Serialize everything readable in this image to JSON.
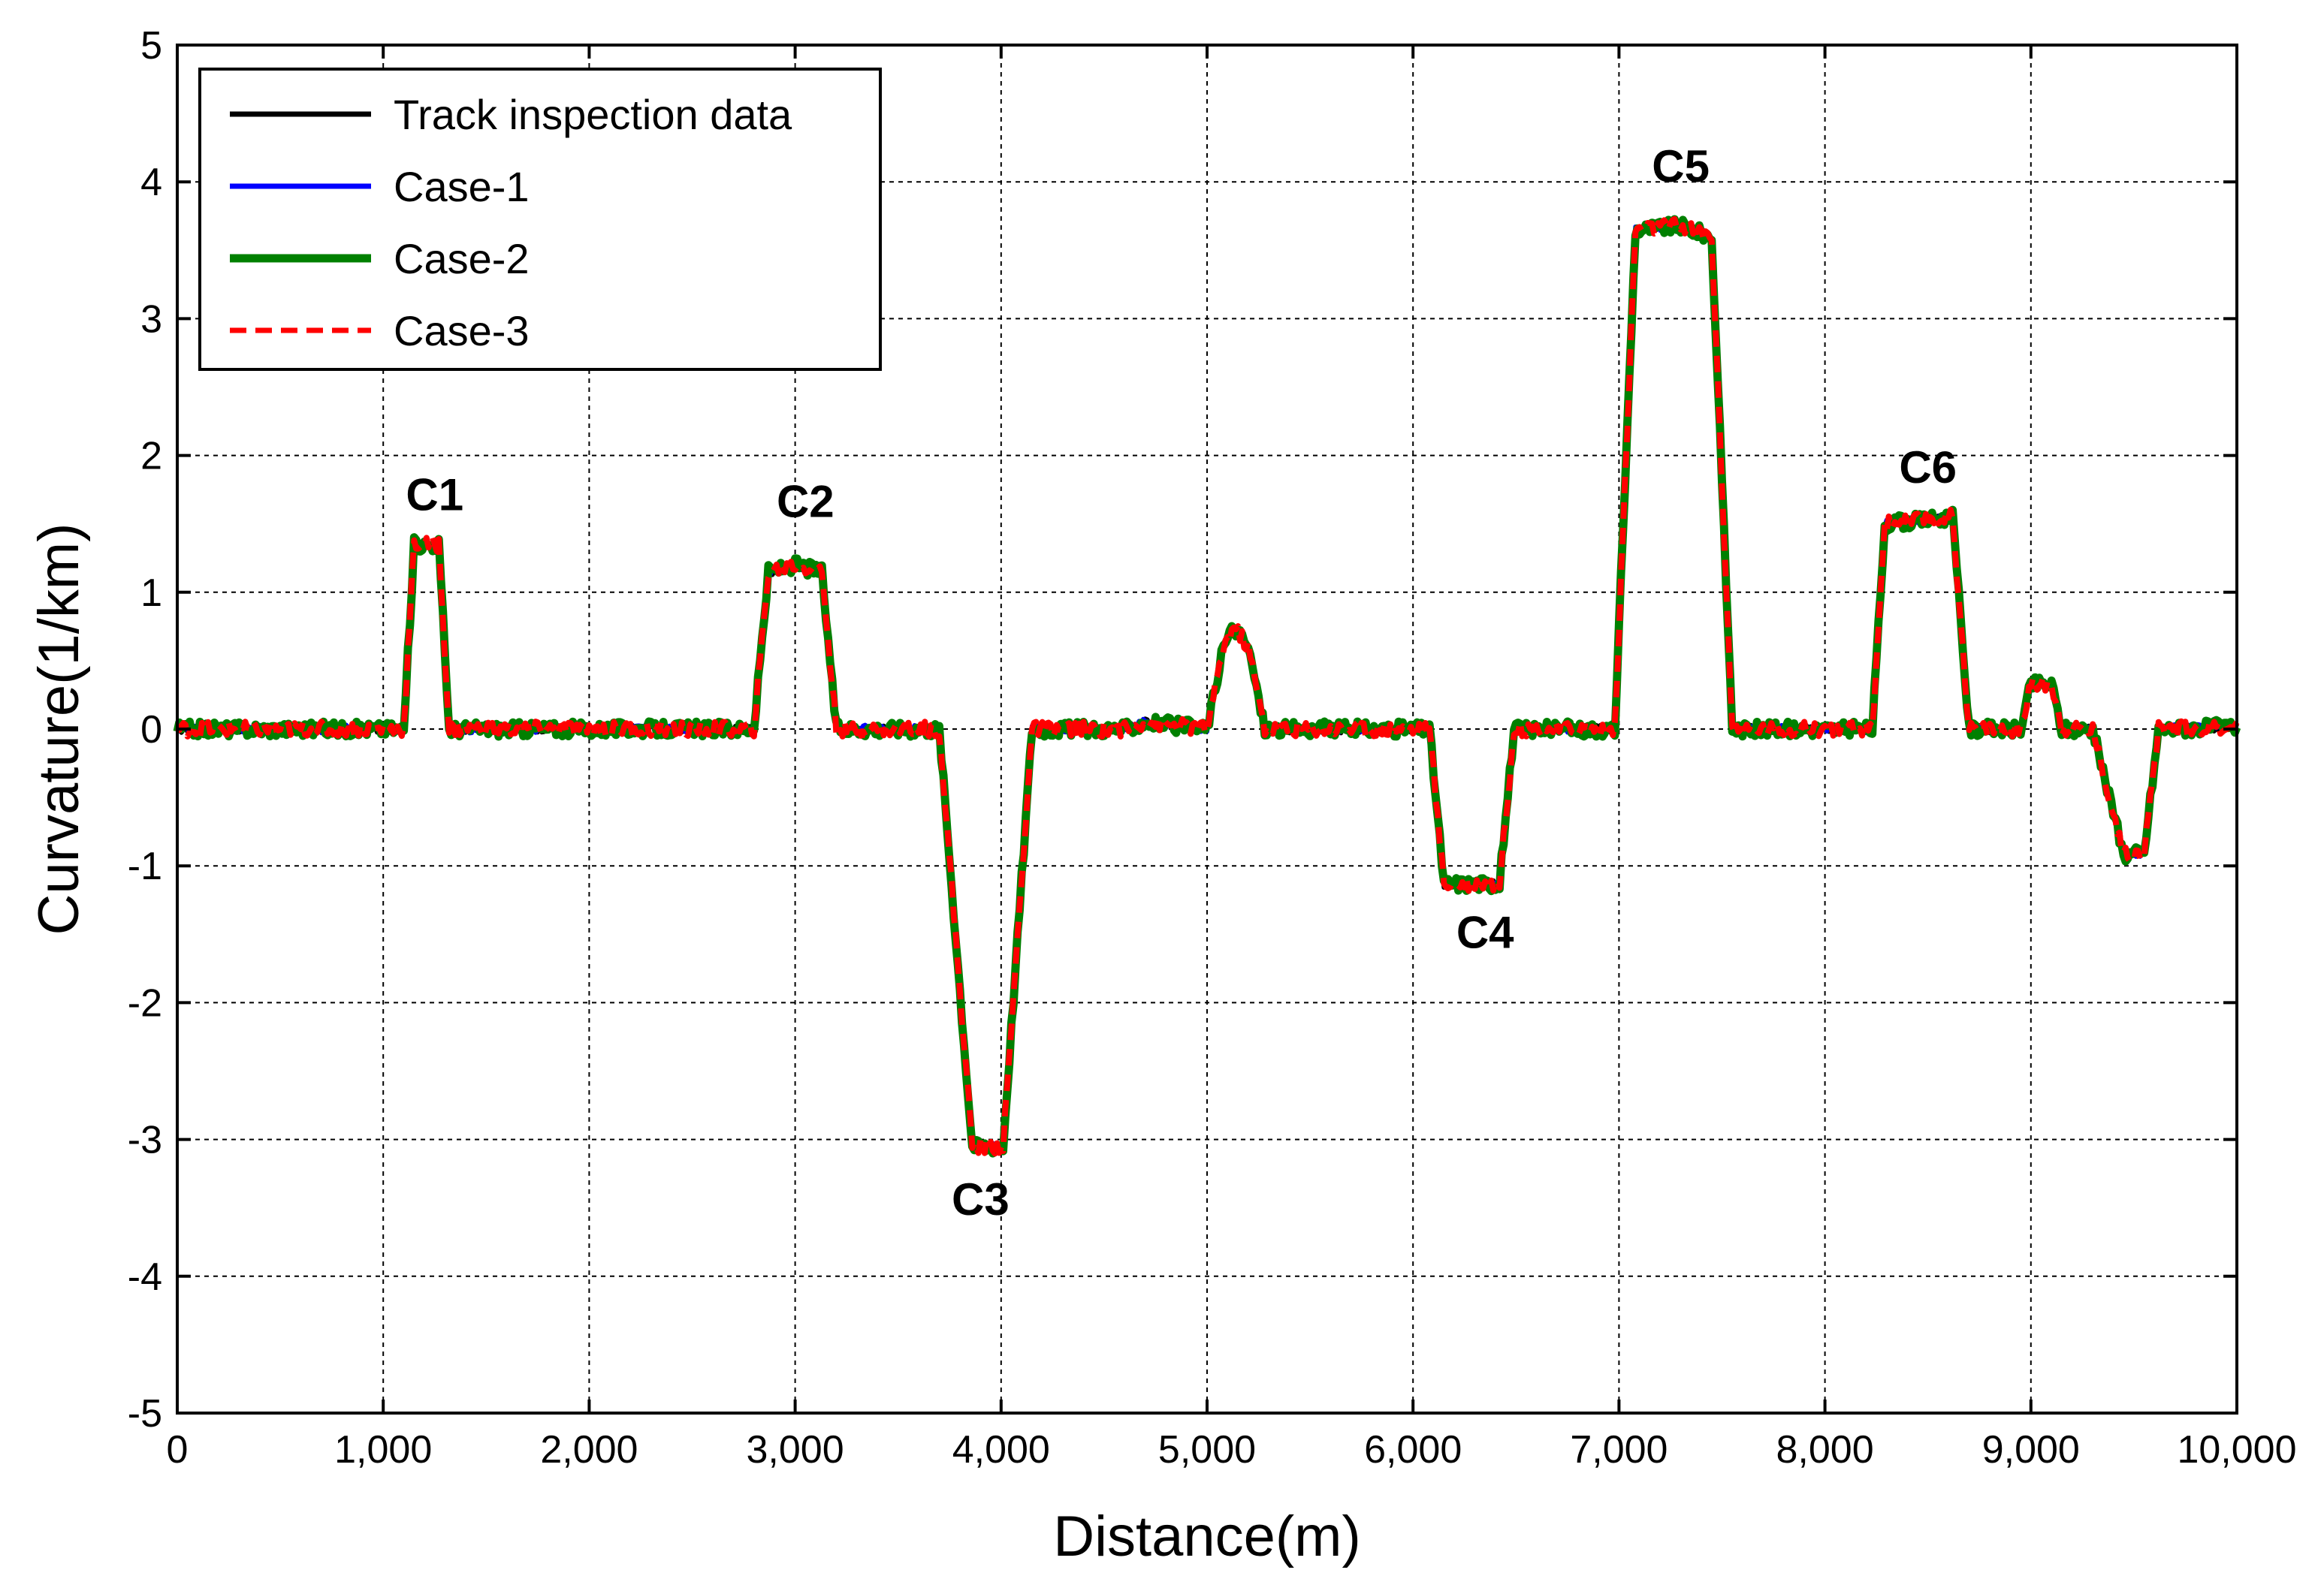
{
  "chart_data": {
    "type": "line",
    "title": "",
    "xlabel": "Distance(m)",
    "ylabel": "Curvature(1/km)",
    "xlim": [
      0,
      10000
    ],
    "ylim": [
      -5,
      5
    ],
    "xticks": [
      0,
      1000,
      2000,
      3000,
      4000,
      5000,
      6000,
      7000,
      8000,
      9000,
      10000
    ],
    "xtick_labels": [
      "0",
      "1,000",
      "2,000",
      "3,000",
      "4,000",
      "5,000",
      "6,000",
      "7,000",
      "8,000",
      "9,000",
      "10,000"
    ],
    "yticks": [
      -5,
      -4,
      -3,
      -2,
      -1,
      0,
      1,
      2,
      3,
      4,
      5
    ],
    "ytick_labels": [
      "-5",
      "-4",
      "-3",
      "-2",
      "-1",
      "0",
      "1",
      "2",
      "3",
      "4",
      "5"
    ],
    "grid": true,
    "legend_position": "top-left",
    "profile": [
      [
        0,
        0
      ],
      [
        1100,
        0
      ],
      [
        1150,
        1.35
      ],
      [
        1270,
        1.35
      ],
      [
        1320,
        0
      ],
      [
        2800,
        0
      ],
      [
        2870,
        1.15
      ],
      [
        3000,
        1.2
      ],
      [
        3130,
        1.15
      ],
      [
        3200,
        0
      ],
      [
        3700,
        0
      ],
      [
        3860,
        -3.05
      ],
      [
        4010,
        -3.05
      ],
      [
        4150,
        0
      ],
      [
        4600,
        0
      ],
      [
        4700,
        0.05
      ],
      [
        5000,
        0
      ],
      [
        5080,
        0.6
      ],
      [
        5130,
        0.75
      ],
      [
        5200,
        0.6
      ],
      [
        5280,
        0
      ],
      [
        6080,
        0
      ],
      [
        6150,
        -1.13
      ],
      [
        6420,
        -1.13
      ],
      [
        6490,
        0
      ],
      [
        6980,
        0
      ],
      [
        7080,
        3.65
      ],
      [
        7300,
        3.68
      ],
      [
        7450,
        3.6
      ],
      [
        7550,
        0
      ],
      [
        8230,
        0
      ],
      [
        8290,
        1.5
      ],
      [
        8620,
        1.55
      ],
      [
        8700,
        0
      ],
      [
        8950,
        0
      ],
      [
        9000,
        0.33
      ],
      [
        9100,
        0.33
      ],
      [
        9150,
        0
      ],
      [
        9300,
        0
      ],
      [
        9450,
        -0.92
      ],
      [
        9550,
        -0.9
      ],
      [
        9620,
        0
      ],
      [
        10000,
        0.02
      ]
    ],
    "series": [
      {
        "name": "Track inspection data",
        "color": "#000000",
        "style": "solid"
      },
      {
        "name": "Case-1",
        "color": "#0000ff",
        "style": "solid"
      },
      {
        "name": "Case-2",
        "color": "#008000",
        "style": "solid"
      },
      {
        "name": "Case-3",
        "color": "#ff0000",
        "style": "dashed"
      }
    ],
    "annotations": [
      {
        "text": "C1",
        "x": 1250,
        "y": 1.6
      },
      {
        "text": "C2",
        "x": 3050,
        "y": 1.55
      },
      {
        "text": "C3",
        "x": 3900,
        "y": -3.55
      },
      {
        "text": "C4",
        "x": 6350,
        "y": -1.6
      },
      {
        "text": "C5",
        "x": 7300,
        "y": 4.0
      },
      {
        "text": "C6",
        "x": 8500,
        "y": 1.8
      }
    ]
  }
}
